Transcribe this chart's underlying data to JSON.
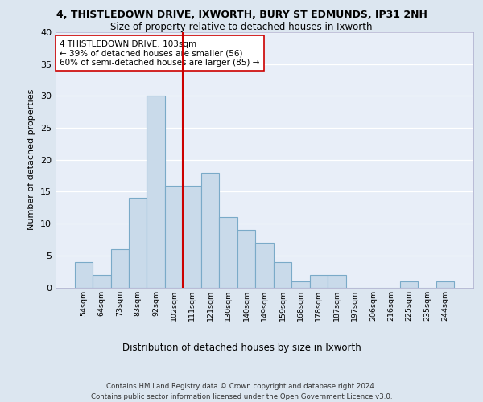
{
  "title_line1": "4, THISTLEDOWN DRIVE, IXWORTH, BURY ST EDMUNDS, IP31 2NH",
  "title_line2": "Size of property relative to detached houses in Ixworth",
  "xlabel": "Distribution of detached houses by size in Ixworth",
  "ylabel": "Number of detached properties",
  "footer_line1": "Contains HM Land Registry data © Crown copyright and database right 2024.",
  "footer_line2": "Contains public sector information licensed under the Open Government Licence v3.0.",
  "categories": [
    "54sqm",
    "64sqm",
    "73sqm",
    "83sqm",
    "92sqm",
    "102sqm",
    "111sqm",
    "121sqm",
    "130sqm",
    "140sqm",
    "149sqm",
    "159sqm",
    "168sqm",
    "178sqm",
    "187sqm",
    "197sqm",
    "206sqm",
    "216sqm",
    "225sqm",
    "235sqm",
    "244sqm"
  ],
  "values": [
    4,
    2,
    6,
    14,
    30,
    16,
    16,
    18,
    11,
    9,
    7,
    4,
    1,
    2,
    2,
    0,
    0,
    0,
    1,
    0,
    1
  ],
  "bar_color": "#c9daea",
  "bar_edge_color": "#7aaac8",
  "annotation_line1": "4 THISTLEDOWN DRIVE: 103sqm",
  "annotation_line2": "← 39% of detached houses are smaller (56)",
  "annotation_line3": "60% of semi-detached houses are larger (85) →",
  "vline_color": "#cc0000",
  "annotation_box_edge": "#cc0000",
  "ylim": [
    0,
    40
  ],
  "yticks": [
    0,
    5,
    10,
    15,
    20,
    25,
    30,
    35,
    40
  ],
  "background_color": "#dce6f0",
  "plot_bg_color": "#e8eef8",
  "grid_color": "#ffffff",
  "vline_index": 5.5
}
